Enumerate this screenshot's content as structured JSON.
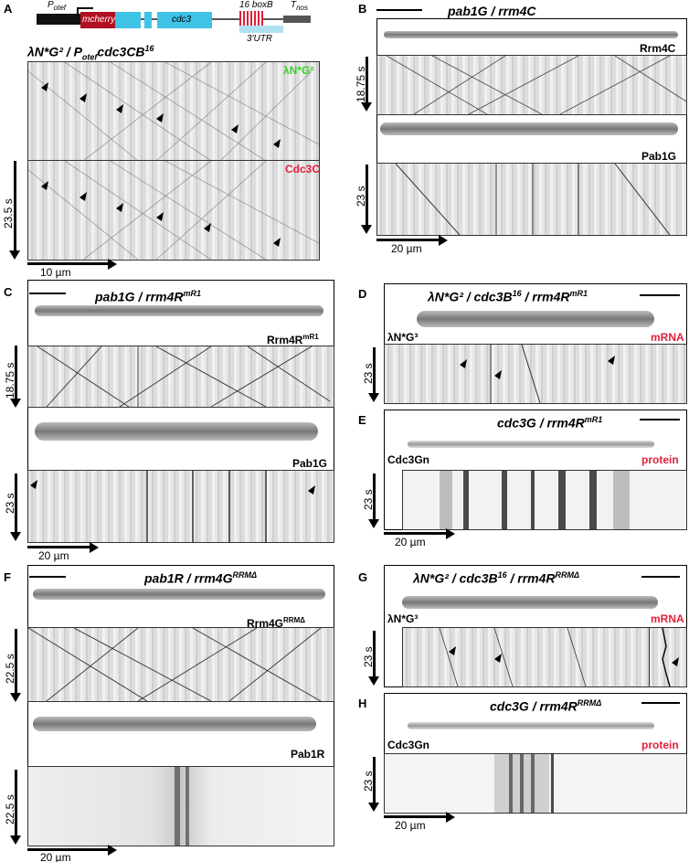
{
  "panels": {
    "A": {
      "letter": "A",
      "title": "λN*G² / P",
      "title_sub": "otef",
      "title_tail": "cdc3CB",
      "title_sup": "16",
      "top_label": "λN*G²",
      "bottom_label": "Cdc3C",
      "time": "23.5 s",
      "scale": "10 µm",
      "gene": {
        "potef": "P",
        "potef_sub": "otef",
        "mcherry": "mcherry",
        "cdc3": "cdc3",
        "boxb": "16 boxB",
        "utr": "3'UTR",
        "tnos": "T",
        "tnos_sub": "nos"
      }
    },
    "B": {
      "letter": "B",
      "title": "pab1G / rrm4C",
      "label1": "Rrm4C",
      "label2": "Pab1G",
      "time1": "18.75 s",
      "time2": "23 s",
      "scale": "20 µm"
    },
    "C": {
      "letter": "C",
      "title": "pab1G / rrm4R",
      "title_sup": "mR1",
      "label1": "Rrm4R",
      "label1_sup": "mR1",
      "label2": "Pab1G",
      "time1": "18.75 s",
      "time2": "23 s",
      "scale": "20 µm"
    },
    "D": {
      "letter": "D",
      "title": "λN*G² / cdc3B",
      "title_sup1": "16",
      "title_tail": " / rrm4R",
      "title_sup2": "mR1",
      "left_label": "λN*G³",
      "right_label": "mRNA",
      "time": "23 s"
    },
    "E": {
      "letter": "E",
      "title": "cdc3G / rrm4R",
      "title_sup": "mR1",
      "left_label": "Cdc3Gn",
      "right_label": "protein",
      "time": "23 s",
      "scale": "20 µm"
    },
    "F": {
      "letter": "F",
      "title": "pab1R / rrm4G",
      "title_sup": "RRMΔ",
      "label1": "Rrm4G",
      "label1_sup": "RRMΔ",
      "label2": "Pab1R",
      "time1": "22.5 s",
      "time2": "22.5 s",
      "scale": "20 µm"
    },
    "G": {
      "letter": "G",
      "title": "λN*G² / cdc3B",
      "title_sup1": "16",
      "title_tail": " / rrm4R",
      "title_sup2": "RRMΔ",
      "left_label": "λN*G³",
      "right_label": "mRNA",
      "time": "23 s"
    },
    "H": {
      "letter": "H",
      "title": "cdc3G / rrm4R",
      "title_sup": "RRMΔ",
      "left_label": "Cdc3Gn",
      "right_label": "protein",
      "time": "23 s",
      "scale": "20 µm"
    }
  }
}
